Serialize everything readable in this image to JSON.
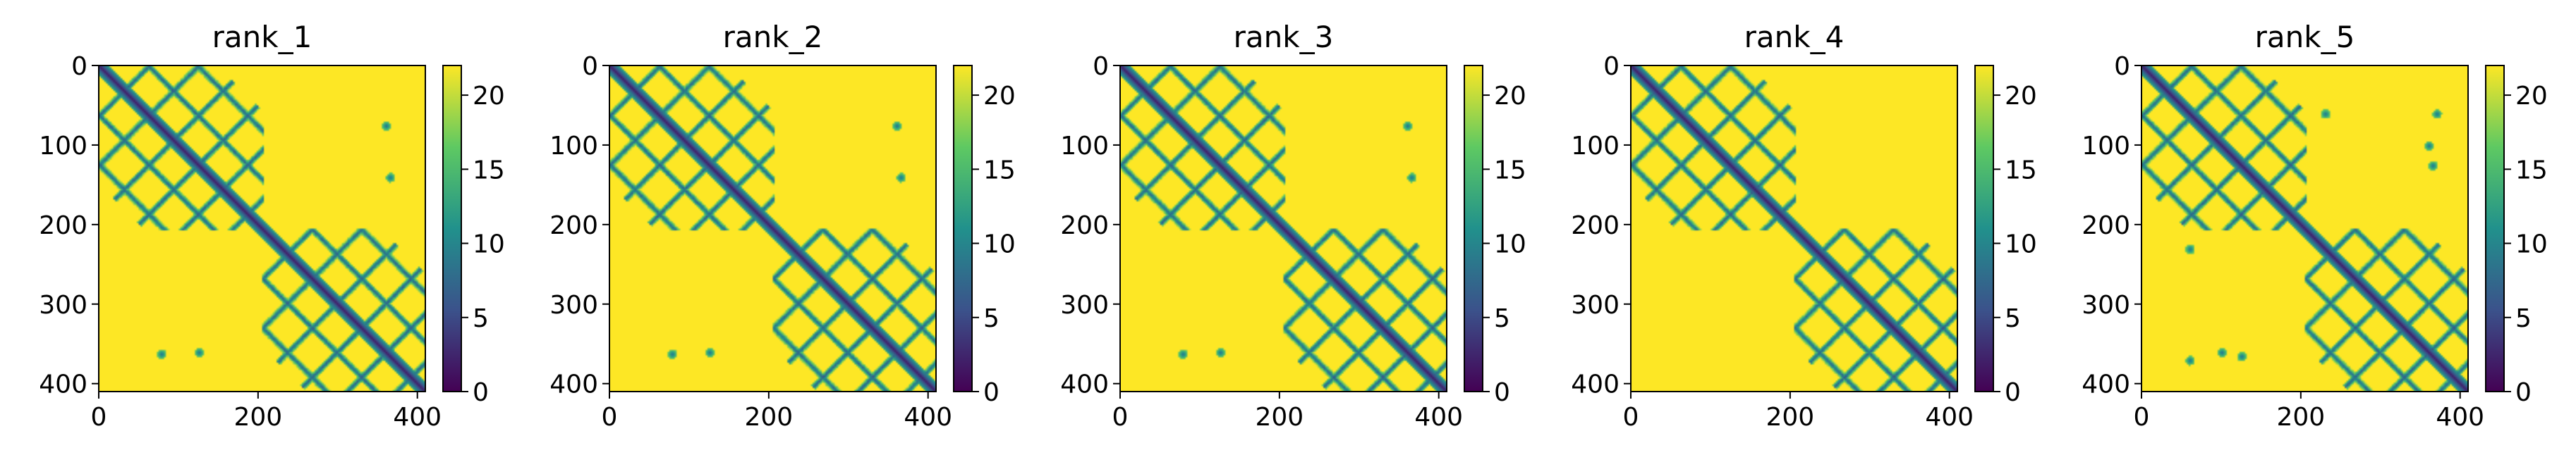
{
  "chart_data": {
    "type": "heatmap",
    "colormap": [
      "#440154",
      "#3b528b",
      "#21918c",
      "#5ec962",
      "#fde725"
    ],
    "color_range": [
      0,
      22
    ],
    "colorbar_ticks": [
      "0",
      "5",
      "10",
      "15",
      "20"
    ],
    "colorbar_tick_values": [
      0,
      5,
      10,
      15,
      20
    ],
    "x_ticks": [
      "0",
      "200",
      "400"
    ],
    "x_tick_values": [
      0,
      200,
      400
    ],
    "y_ticks": [
      "0",
      "100",
      "200",
      "300",
      "400"
    ],
    "y_tick_values": [
      0,
      100,
      200,
      300,
      400
    ],
    "xlim": [
      0,
      410
    ],
    "ylim": [
      0,
      410
    ],
    "grid": false,
    "panels": [
      {
        "title": "rank_1",
        "near_contact_ranges": [
          [
            0,
            205
          ],
          [
            205,
            410
          ]
        ],
        "minor_offdiagonal_spots": [
          [
            78,
            362
          ],
          [
            125,
            360
          ],
          [
            360,
            75
          ],
          [
            365,
            140
          ]
        ]
      },
      {
        "title": "rank_2",
        "near_contact_ranges": [
          [
            0,
            205
          ],
          [
            205,
            410
          ]
        ],
        "minor_offdiagonal_spots": [
          [
            78,
            362
          ],
          [
            125,
            360
          ],
          [
            360,
            75
          ],
          [
            365,
            140
          ]
        ]
      },
      {
        "title": "rank_3",
        "near_contact_ranges": [
          [
            0,
            205
          ],
          [
            205,
            410
          ]
        ],
        "minor_offdiagonal_spots": [
          [
            78,
            362
          ],
          [
            125,
            360
          ],
          [
            360,
            75
          ],
          [
            365,
            140
          ]
        ]
      },
      {
        "title": "rank_4",
        "near_contact_ranges": [
          [
            0,
            205
          ],
          [
            205,
            410
          ]
        ],
        "minor_offdiagonal_spots": []
      },
      {
        "title": "rank_5",
        "near_contact_ranges": [
          [
            0,
            205
          ],
          [
            205,
            410
          ]
        ],
        "minor_offdiagonal_spots": [
          [
            60,
            370
          ],
          [
            100,
            360
          ],
          [
            125,
            365
          ],
          [
            60,
            230
          ],
          [
            370,
            60
          ],
          [
            360,
            100
          ],
          [
            365,
            125
          ],
          [
            230,
            60
          ]
        ]
      }
    ]
  }
}
